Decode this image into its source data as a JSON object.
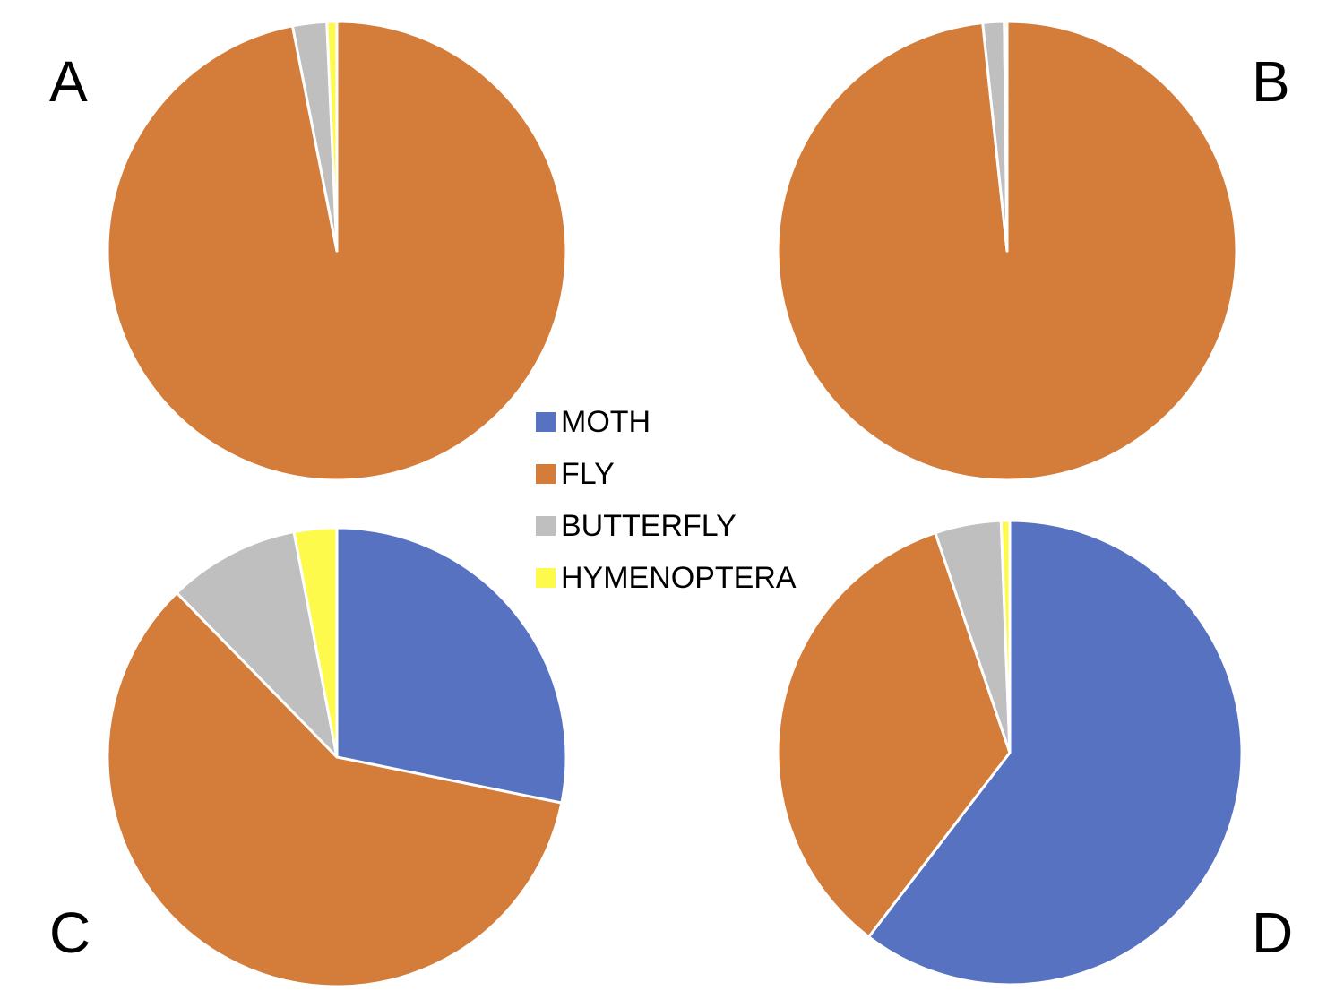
{
  "chart_data": [
    {
      "type": "pie",
      "panel_label": "A",
      "categories": [
        "MOTH",
        "FLY",
        "BUTTERFLY",
        "HYMENOPTERA"
      ],
      "values": [
        0.0,
        96.9,
        2.4,
        0.7
      ]
    },
    {
      "type": "pie",
      "panel_label": "B",
      "categories": [
        "MOTH",
        "FLY",
        "BUTTERFLY",
        "HYMENOPTERA"
      ],
      "values": [
        0.0,
        98.3,
        1.5,
        0.2
      ]
    },
    {
      "type": "pie",
      "panel_label": "C",
      "categories": [
        "MOTH",
        "FLY",
        "BUTTERFLY",
        "HYMENOPTERA"
      ],
      "values": [
        28.2,
        59.5,
        9.3,
        3.0
      ]
    },
    {
      "type": "pie",
      "panel_label": "D",
      "categories": [
        "MOTH",
        "FLY",
        "BUTTERFLY",
        "HYMENOPTERA"
      ],
      "values": [
        60.4,
        34.4,
        4.6,
        0.6
      ]
    }
  ],
  "legend": {
    "placement": "center",
    "items": [
      {
        "label": "MOTH",
        "color": "#5772c1"
      },
      {
        "label": "FLY",
        "color": "#d47c3a"
      },
      {
        "label": "BUTTERFLY",
        "color": "#bfbfbf"
      },
      {
        "label": "HYMENOPTERA",
        "color": "#fdfa4c"
      }
    ]
  }
}
